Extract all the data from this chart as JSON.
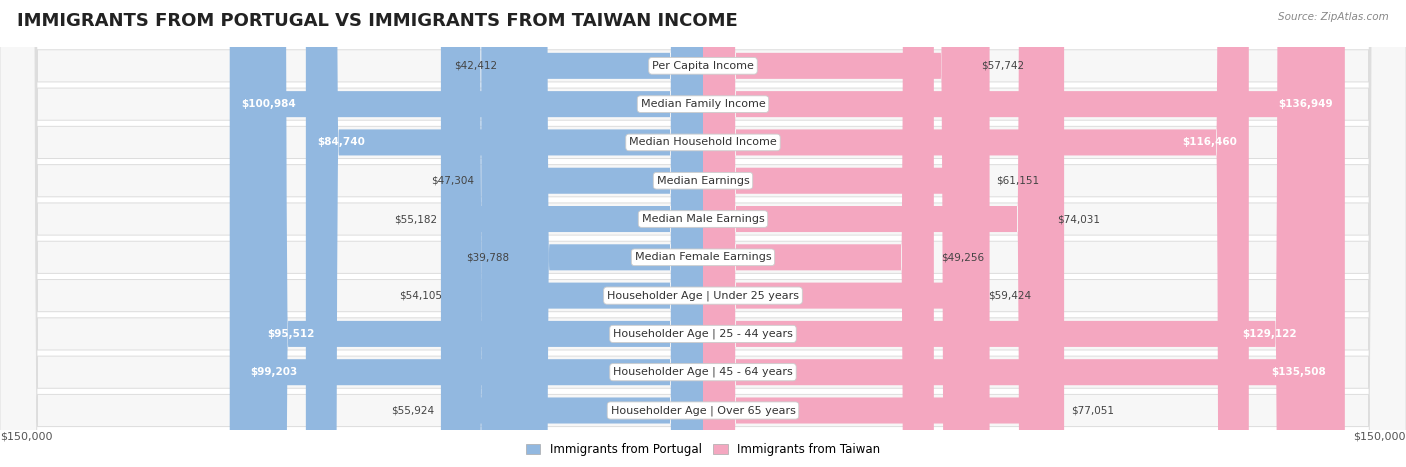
{
  "title": "IMMIGRANTS FROM PORTUGAL VS IMMIGRANTS FROM TAIWAN INCOME",
  "source": "Source: ZipAtlas.com",
  "categories": [
    "Per Capita Income",
    "Median Family Income",
    "Median Household Income",
    "Median Earnings",
    "Median Male Earnings",
    "Median Female Earnings",
    "Householder Age | Under 25 years",
    "Householder Age | 25 - 44 years",
    "Householder Age | 45 - 64 years",
    "Householder Age | Over 65 years"
  ],
  "portugal_values": [
    42412,
    100984,
    84740,
    47304,
    55182,
    39788,
    54105,
    95512,
    99203,
    55924
  ],
  "taiwan_values": [
    57742,
    136949,
    116460,
    61151,
    74031,
    49256,
    59424,
    129122,
    135508,
    77051
  ],
  "max_value": 150000,
  "portugal_color": "#92b8e0",
  "portugal_color_dark": "#5b9bd5",
  "taiwan_color": "#f4a7c0",
  "taiwan_color_dark": "#f0609a",
  "portugal_label": "Immigrants from Portugal",
  "taiwan_label": "Immigrants from Taiwan",
  "background_color": "#ffffff",
  "row_bg_light": "#f7f7f7",
  "row_border": "#dddddd",
  "title_fontsize": 13,
  "label_fontsize": 8.0,
  "value_fontsize": 7.5,
  "legend_fontsize": 8.5,
  "axis_label_fontsize": 8,
  "portugal_threshold": 75000,
  "taiwan_threshold": 85000
}
